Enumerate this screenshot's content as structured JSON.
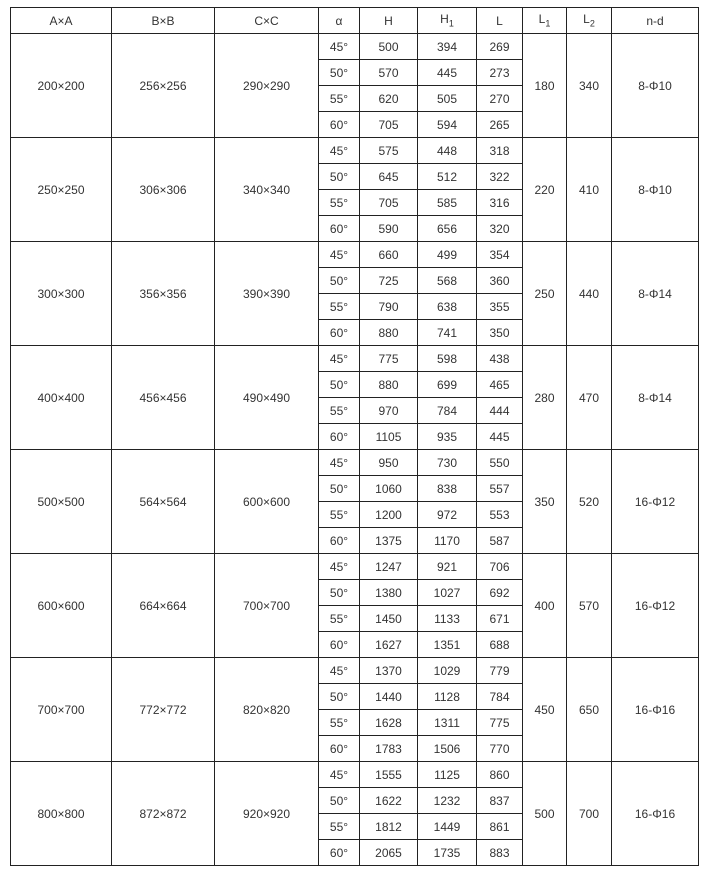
{
  "headers": [
    "A×A",
    "B×B",
    "C×C",
    "α",
    "H",
    "H1",
    "L",
    "L1",
    "L2",
    "n-d"
  ],
  "groups": [
    {
      "a": "200×200",
      "b": "256×256",
      "c": "290×290",
      "l1": "180",
      "l2": "340",
      "nd": "8-Φ10",
      "rows": [
        [
          "45°",
          "500",
          "394",
          "269"
        ],
        [
          "50°",
          "570",
          "445",
          "273"
        ],
        [
          "55°",
          "620",
          "505",
          "270"
        ],
        [
          "60°",
          "705",
          "594",
          "265"
        ]
      ]
    },
    {
      "a": "250×250",
      "b": "306×306",
      "c": "340×340",
      "l1": "220",
      "l2": "410",
      "nd": "8-Φ10",
      "rows": [
        [
          "45°",
          "575",
          "448",
          "318"
        ],
        [
          "50°",
          "645",
          "512",
          "322"
        ],
        [
          "55°",
          "705",
          "585",
          "316"
        ],
        [
          "60°",
          "590",
          "656",
          "320"
        ]
      ]
    },
    {
      "a": "300×300",
      "b": "356×356",
      "c": "390×390",
      "l1": "250",
      "l2": "440",
      "nd": "8-Φ14",
      "rows": [
        [
          "45°",
          "660",
          "499",
          "354"
        ],
        [
          "50°",
          "725",
          "568",
          "360"
        ],
        [
          "55°",
          "790",
          "638",
          "355"
        ],
        [
          "60°",
          "880",
          "741",
          "350"
        ]
      ]
    },
    {
      "a": "400×400",
      "b": "456×456",
      "c": "490×490",
      "l1": "280",
      "l2": "470",
      "nd": "8-Φ14",
      "rows": [
        [
          "45°",
          "775",
          "598",
          "438"
        ],
        [
          "50°",
          "880",
          "699",
          "465"
        ],
        [
          "55°",
          "970",
          "784",
          "444"
        ],
        [
          "60°",
          "1105",
          "935",
          "445"
        ]
      ]
    },
    {
      "a": "500×500",
      "b": "564×564",
      "c": "600×600",
      "l1": "350",
      "l2": "520",
      "nd": "16-Φ12",
      "rows": [
        [
          "45°",
          "950",
          "730",
          "550"
        ],
        [
          "50°",
          "1060",
          "838",
          "557"
        ],
        [
          "55°",
          "1200",
          "972",
          "553"
        ],
        [
          "60°",
          "1375",
          "1170",
          "587"
        ]
      ]
    },
    {
      "a": "600×600",
      "b": "664×664",
      "c": "700×700",
      "l1": "400",
      "l2": "570",
      "nd": "16-Φ12",
      "rows": [
        [
          "45°",
          "1247",
          "921",
          "706"
        ],
        [
          "50°",
          "1380",
          "1027",
          "692"
        ],
        [
          "55°",
          "1450",
          "1133",
          "671"
        ],
        [
          "60°",
          "1627",
          "1351",
          "688"
        ]
      ]
    },
    {
      "a": "700×700",
      "b": "772×772",
      "c": "820×820",
      "l1": "450",
      "l2": "650",
      "nd": "16-Φ16",
      "rows": [
        [
          "45°",
          "1370",
          "1029",
          "779"
        ],
        [
          "50°",
          "1440",
          "1128",
          "784"
        ],
        [
          "55°",
          "1628",
          "1311",
          "775"
        ],
        [
          "60°",
          "1783",
          "1506",
          "770"
        ]
      ]
    },
    {
      "a": "800×800",
      "b": "872×872",
      "c": "920×920",
      "l1": "500",
      "l2": "700",
      "nd": "16-Φ16",
      "rows": [
        [
          "45°",
          "1555",
          "1125",
          "860"
        ],
        [
          "50°",
          "1622",
          "1232",
          "837"
        ],
        [
          "55°",
          "1812",
          "1449",
          "861"
        ],
        [
          "60°",
          "2065",
          "1735",
          "883"
        ]
      ]
    }
  ]
}
